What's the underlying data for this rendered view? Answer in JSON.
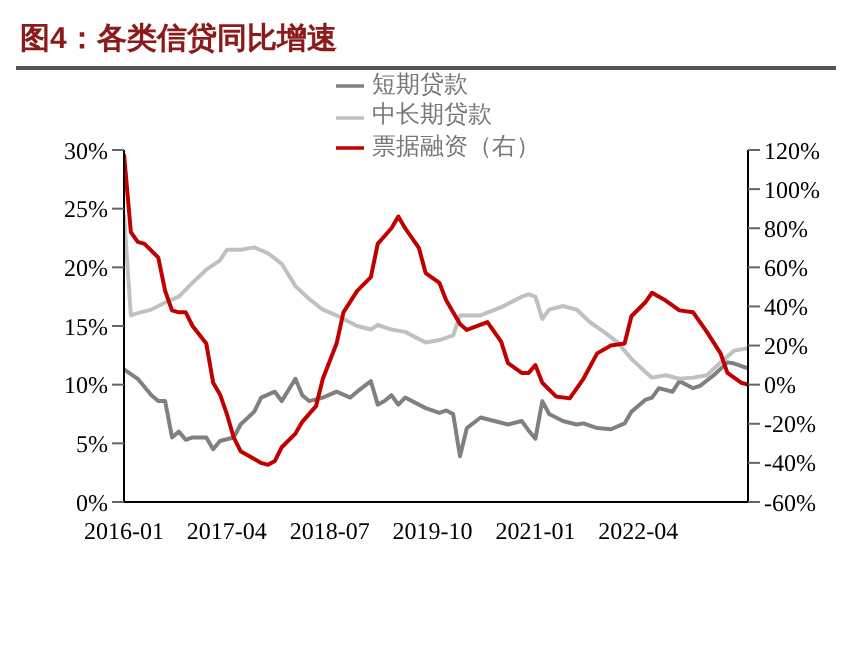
{
  "chart_data": {
    "type": "line",
    "title": "图4：各类信贷同比增速",
    "xlim": [
      "2016-01",
      "2023-08"
    ],
    "xticks": [
      "2016-01",
      "2017-04",
      "2018-07",
      "2019-10",
      "2021-01",
      "2022-04"
    ],
    "ylim": [
      0,
      30
    ],
    "yticks": [
      {
        "value": 0,
        "label": "0%"
      },
      {
        "value": 5,
        "label": "5%"
      },
      {
        "value": 10,
        "label": "10%"
      },
      {
        "value": 15,
        "label": "15%"
      },
      {
        "value": 20,
        "label": "20%"
      },
      {
        "value": 25,
        "label": "25%"
      },
      {
        "value": 30,
        "label": "30%"
      }
    ],
    "y2lim": [
      -60,
      120
    ],
    "y2ticks": [
      {
        "value": -60,
        "label": "-60%"
      },
      {
        "value": -40,
        "label": "-40%"
      },
      {
        "value": -20,
        "label": "-20%"
      },
      {
        "value": 0,
        "label": "0%"
      },
      {
        "value": 20,
        "label": "20%"
      },
      {
        "value": 40,
        "label": "40%"
      },
      {
        "value": 60,
        "label": "60%"
      },
      {
        "value": 80,
        "label": "80%"
      },
      {
        "value": 100,
        "label": "100%"
      },
      {
        "value": 120,
        "label": "120%"
      }
    ],
    "legend": "top",
    "marker": "none",
    "line_style": "solid",
    "series": [
      {
        "name": "短期贷款",
        "color": "#808080",
        "x": [
          "2016-01",
          "2016-03",
          "2016-05",
          "2016-06",
          "2016-07",
          "2016-08",
          "2016-09",
          "2016-10",
          "2016-11",
          "2017-01",
          "2017-02",
          "2017-03",
          "2017-05",
          "2017-06",
          "2017-08",
          "2017-09",
          "2017-11",
          "2017-12",
          "2018-02",
          "2018-03",
          "2018-04",
          "2018-06",
          "2018-08",
          "2018-10",
          "2018-11",
          "2019-01",
          "2019-02",
          "2019-03",
          "2019-04",
          "2019-05",
          "2019-06",
          "2019-08",
          "2019-09",
          "2019-11",
          "2019-12",
          "2020-01",
          "2020-02",
          "2020-03",
          "2020-05",
          "2020-07",
          "2020-09",
          "2020-11",
          "2020-12",
          "2021-01",
          "2021-02",
          "2021-03",
          "2021-05",
          "2021-07",
          "2021-08",
          "2021-10",
          "2021-12",
          "2022-02",
          "2022-03",
          "2022-05",
          "2022-06",
          "2022-07",
          "2022-09",
          "2022-10",
          "2022-12",
          "2023-01",
          "2023-03",
          "2023-05",
          "2023-06",
          "2023-08"
        ],
        "values": [
          11.3,
          10.5,
          9.1,
          8.6,
          8.6,
          5.5,
          6.0,
          5.3,
          5.5,
          5.5,
          4.5,
          5.2,
          5.5,
          6.6,
          7.7,
          8.9,
          9.4,
          8.6,
          10.5,
          9.1,
          8.6,
          8.9,
          9.4,
          8.9,
          9.4,
          10.3,
          8.3,
          8.6,
          9.1,
          8.3,
          8.9,
          8.3,
          8.0,
          7.6,
          7.8,
          7.5,
          3.9,
          6.3,
          7.2,
          6.9,
          6.6,
          6.9,
          6.1,
          5.4,
          8.6,
          7.5,
          6.9,
          6.6,
          6.7,
          6.3,
          6.2,
          6.7,
          7.7,
          8.7,
          8.9,
          9.7,
          9.4,
          10.3,
          9.7,
          9.9,
          10.8,
          11.9,
          11.8,
          11.4
        ]
      },
      {
        "name": "中长期贷款",
        "color": "#c0c0c0",
        "x": [
          "2016-01",
          "2016-02",
          "2016-03",
          "2016-05",
          "2016-07",
          "2016-09",
          "2016-11",
          "2017-01",
          "2017-03",
          "2017-04",
          "2017-06",
          "2017-08",
          "2017-10",
          "2017-12",
          "2018-02",
          "2018-04",
          "2018-06",
          "2018-08",
          "2018-10",
          "2018-11",
          "2019-01",
          "2019-02",
          "2019-04",
          "2019-06",
          "2019-08",
          "2019-09",
          "2019-11",
          "2020-01",
          "2020-02",
          "2020-05",
          "2020-08",
          "2020-11",
          "2020-12",
          "2021-01",
          "2021-02",
          "2021-03",
          "2021-05",
          "2021-07",
          "2021-09",
          "2021-11",
          "2022-01",
          "2022-03",
          "2022-05",
          "2022-06",
          "2022-08",
          "2022-10",
          "2022-12",
          "2023-02",
          "2023-04",
          "2023-06",
          "2023-08"
        ],
        "values": [
          24.5,
          15.9,
          16.1,
          16.4,
          17.0,
          17.5,
          18.7,
          19.8,
          20.6,
          21.5,
          21.5,
          21.7,
          21.2,
          20.3,
          18.4,
          17.3,
          16.4,
          15.9,
          15.3,
          15.0,
          14.7,
          15.1,
          14.7,
          14.5,
          13.9,
          13.6,
          13.8,
          14.2,
          15.9,
          15.9,
          16.6,
          17.5,
          17.7,
          17.5,
          15.6,
          16.4,
          16.7,
          16.4,
          15.3,
          14.5,
          13.6,
          12.2,
          11.1,
          10.6,
          10.8,
          10.5,
          10.6,
          10.8,
          11.9,
          12.9,
          13.1
        ]
      },
      {
        "name": "票据融资（右）",
        "color": "#c00000",
        "axis": "y2",
        "x": [
          "2016-01",
          "2016-02",
          "2016-03",
          "2016-04",
          "2016-06",
          "2016-07",
          "2016-08",
          "2016-09",
          "2016-10",
          "2016-11",
          "2017-01",
          "2017-02",
          "2017-03",
          "2017-04",
          "2017-05",
          "2017-06",
          "2017-08",
          "2017-09",
          "2017-10",
          "2017-11",
          "2017-12",
          "2018-02",
          "2018-03",
          "2018-05",
          "2018-06",
          "2018-08",
          "2018-09",
          "2018-11",
          "2019-01",
          "2019-02",
          "2019-04",
          "2019-05",
          "2019-06",
          "2019-08",
          "2019-09",
          "2019-11",
          "2019-12",
          "2020-02",
          "2020-03",
          "2020-06",
          "2020-08",
          "2020-09",
          "2020-11",
          "2020-12",
          "2021-01",
          "2021-02",
          "2021-04",
          "2021-06",
          "2021-08",
          "2021-10",
          "2021-12",
          "2022-02",
          "2022-03",
          "2022-05",
          "2022-06",
          "2022-08",
          "2022-10",
          "2022-12",
          "2023-02",
          "2023-04",
          "2023-05",
          "2023-07",
          "2023-08"
        ],
        "values": [
          118,
          78,
          73,
          72,
          65,
          48,
          38,
          37,
          37,
          30,
          21,
          1,
          -5,
          -15,
          -27,
          -34,
          -38,
          -40,
          -41,
          -39,
          -32,
          -25,
          -19,
          -11,
          3,
          21,
          37,
          48,
          55,
          72,
          80,
          86,
          80,
          70,
          57,
          52,
          43,
          31,
          28,
          32,
          22,
          11,
          6,
          6,
          10,
          1,
          -6,
          -7,
          3,
          16,
          20,
          21,
          35,
          42,
          47,
          43,
          38,
          37,
          27,
          16,
          6,
          1,
          0
        ]
      }
    ]
  }
}
